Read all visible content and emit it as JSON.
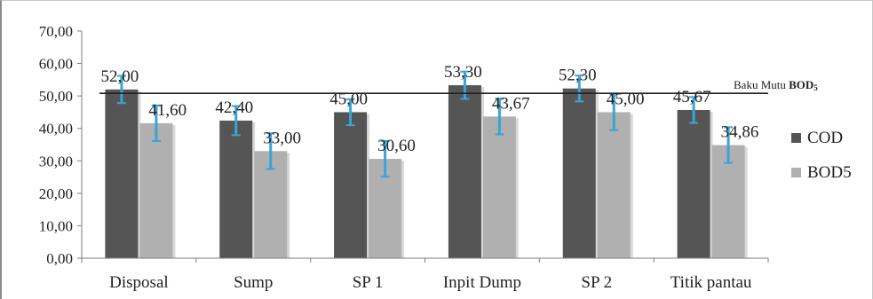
{
  "chart_data": {
    "type": "bar",
    "categories": [
      "Disposal",
      "Sump",
      "SP 1",
      "Inpit Dump",
      "SP 2",
      "Titik pantau"
    ],
    "series": [
      {
        "name": "COD",
        "color": "#555555",
        "values": [
          52.0,
          42.4,
          45.0,
          53.3,
          52.3,
          45.67
        ],
        "labels": [
          "52,00",
          "42,40",
          "45,00",
          "53,30",
          "52,30",
          "45,67"
        ],
        "error": [
          4.2,
          4.5,
          4.0,
          4.2,
          4.0,
          4.0
        ]
      },
      {
        "name": "BOD5",
        "color": "#b0b0b0",
        "values": [
          41.6,
          33.0,
          30.6,
          43.67,
          45.0,
          34.86
        ],
        "labels": [
          "41,60",
          "33,00",
          "30,60",
          "43,67",
          "45,00",
          "34,86"
        ],
        "error": [
          5.5,
          5.5,
          5.5,
          5.5,
          5.5,
          5.5
        ]
      }
    ],
    "yticks": [
      "0,00",
      "10,00",
      "20,00",
      "30,00",
      "40,00",
      "50,00",
      "60,00",
      "70,00"
    ],
    "ylim": [
      0,
      70
    ],
    "error_bar_color": "#3aa3d8",
    "reference_line": {
      "value": 50.8,
      "label_prefix": "Baku Mutu ",
      "label_bold": "BOD",
      "label_sub": "5"
    },
    "legend": {
      "position": "right"
    },
    "grid": false
  }
}
